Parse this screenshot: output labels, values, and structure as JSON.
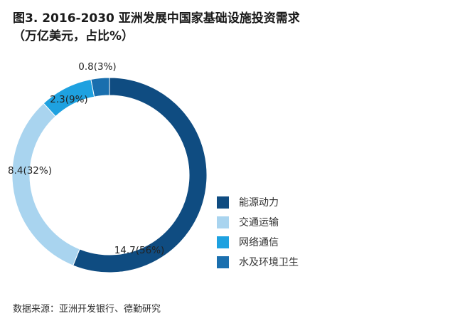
{
  "title_line1": "图3. 2016-2030 亚洲发展中国家基础设施投资需求",
  "title_line2": "（万亿美元，占比%）",
  "source": "数据来源：亚洲开发银行、德勤研究",
  "chart_data": {
    "type": "pie",
    "donut": true,
    "categories": [
      "能源动力",
      "交通运输",
      "网络通信",
      "水及环境卫生"
    ],
    "values": [
      14.7,
      8.4,
      2.3,
      0.8
    ],
    "percents": [
      56,
      32,
      9,
      3
    ],
    "data_labels": [
      "14.7(56%)",
      "8.4(32%)",
      "2.3(9%)",
      "0.8(3%)"
    ],
    "colors": [
      "#0f4c81",
      "#a9d4ef",
      "#1ea1e0",
      "#1a6fae"
    ],
    "legend_position": "right"
  }
}
